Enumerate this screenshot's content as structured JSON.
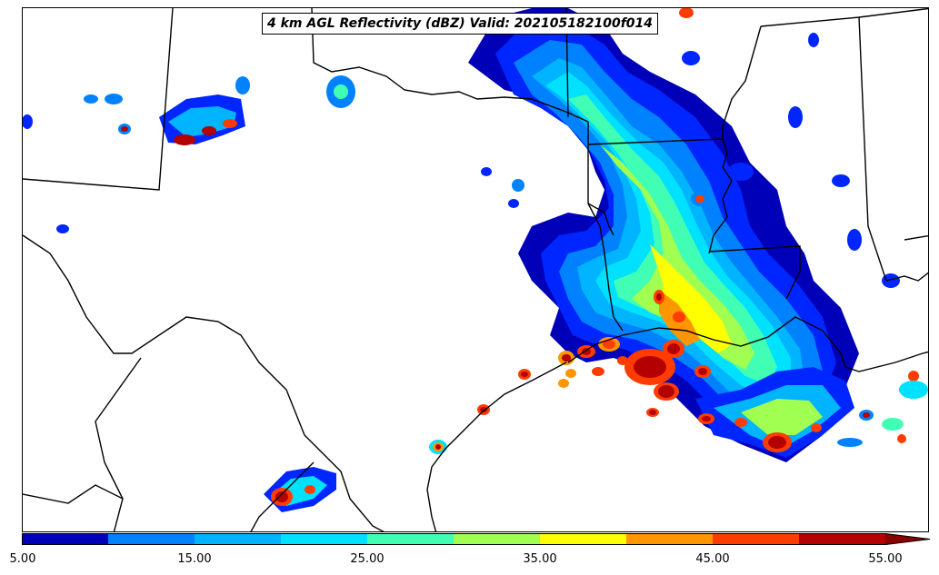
{
  "title": "4 km AGL Reflectivity (dBZ) Valid: 202105182100f014",
  "colorbar": {
    "colors": [
      "#0000b8",
      "#0026ff",
      "#0082ff",
      "#00b4ff",
      "#00e0ff",
      "#40ffb4",
      "#a0ff50",
      "#ffff00",
      "#ff9600",
      "#ff3c00",
      "#b40000"
    ],
    "extend_color": "#8a0000",
    "ticks": [
      "5.00",
      "15.00",
      "25.00",
      "35.00",
      "45.00",
      "55.00"
    ]
  },
  "palette": {
    "boundary": "#000000",
    "background": "#ffffff"
  }
}
